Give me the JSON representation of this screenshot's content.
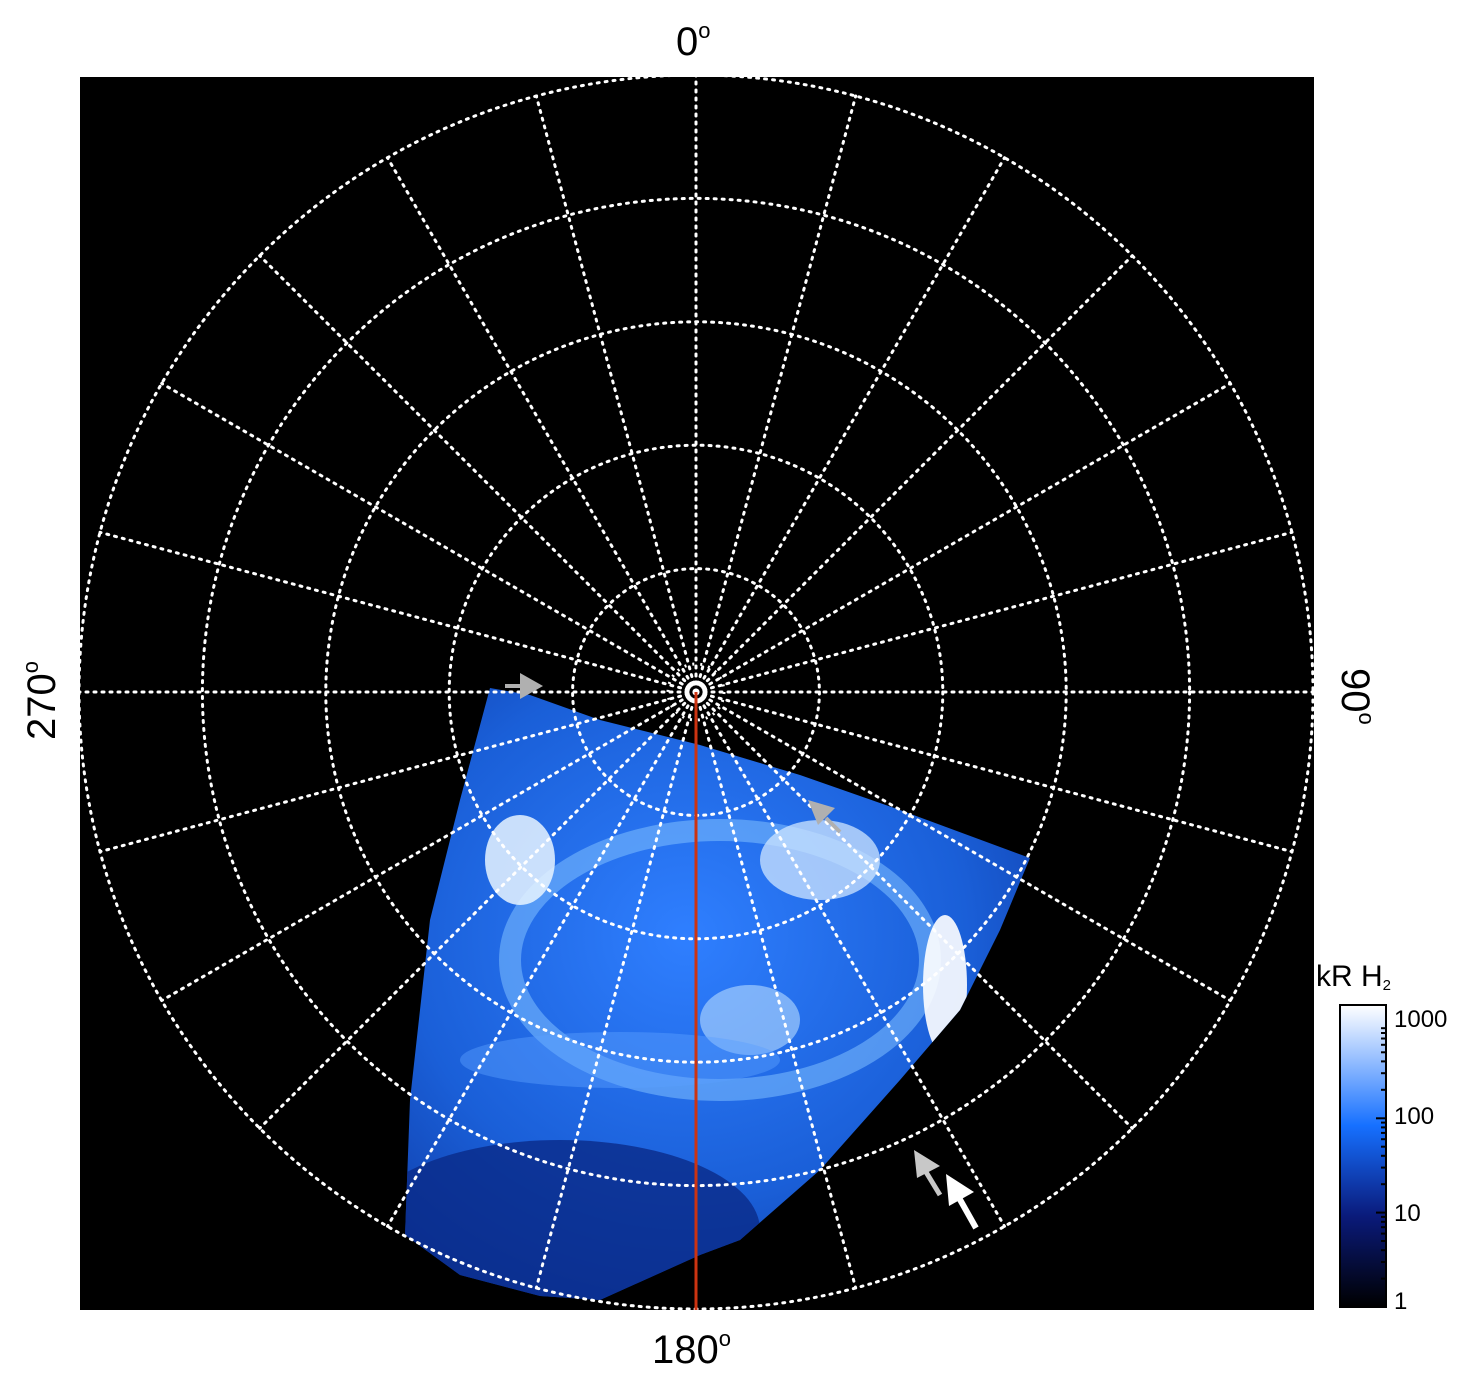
{
  "map": {
    "type": "polar auroral projection",
    "labels": {
      "top": "0",
      "right": "90",
      "bottom": "180",
      "left": "270",
      "degree_symbol": "o"
    },
    "grid": {
      "meridians_every_deg": 15,
      "parallel_rings": 5,
      "style": "dotted white"
    },
    "colors": {
      "background": "#000000",
      "grid": "#ffffff",
      "meridian_line": "#cc3311",
      "aurora_dark": "#0a2a88",
      "aurora_mid": "#1e6cf0",
      "aurora_bright": "#d6ecff"
    },
    "markers": [
      {
        "name": "gray-arrow-left",
        "color": "#b0b0b0"
      },
      {
        "name": "gray-arrow-mid",
        "color": "#b0b0b0"
      },
      {
        "name": "gray-arrow-lower",
        "color": "#b0b0b0"
      },
      {
        "name": "white-arrow-lower",
        "color": "#ffffff"
      }
    ]
  },
  "colorbar": {
    "title": "kR H",
    "title_subscript": "2",
    "scale": "log",
    "ticks": [
      "1000",
      "100",
      "10",
      "1"
    ]
  }
}
